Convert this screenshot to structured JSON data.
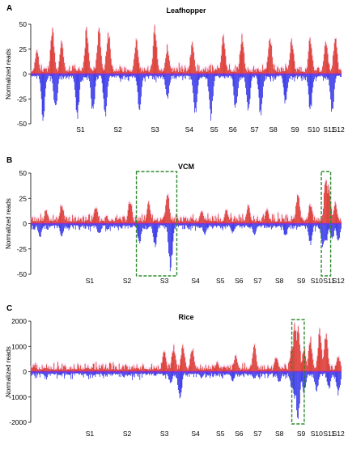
{
  "chart_data": [
    {
      "type": "bar",
      "panel": "A",
      "title": "Leafhopper",
      "ylabel": "Normalized reads",
      "ylim": [
        -50,
        50
      ],
      "yticks": [
        "50",
        "25",
        "0",
        "-25",
        "-50"
      ],
      "ytick_values": [
        50,
        25,
        0,
        -25,
        -50
      ],
      "x_segments": [
        "S1",
        "S2",
        "S3",
        "S4",
        "S5",
        "S6",
        "S7",
        "S8",
        "S9",
        "S10",
        "S11",
        "S12"
      ],
      "x_segment_positions": [
        0.16,
        0.28,
        0.4,
        0.51,
        0.59,
        0.65,
        0.72,
        0.78,
        0.85,
        0.91,
        0.96,
        0.99
      ],
      "series": [],
      "highlights": [],
      "peaks_positive": [
        [
          0.02,
          25
        ],
        [
          0.07,
          47
        ],
        [
          0.1,
          34
        ],
        [
          0.18,
          48
        ],
        [
          0.22,
          50
        ],
        [
          0.25,
          48
        ],
        [
          0.34,
          36
        ],
        [
          0.4,
          50
        ],
        [
          0.44,
          30
        ],
        [
          0.52,
          33
        ],
        [
          0.62,
          40
        ],
        [
          0.68,
          42
        ],
        [
          0.77,
          44
        ],
        [
          0.84,
          38
        ],
        [
          0.9,
          40
        ],
        [
          0.95,
          38
        ],
        [
          0.98,
          40
        ]
      ],
      "peaks_negative": [
        [
          0.04,
          -48
        ],
        [
          0.08,
          -38
        ],
        [
          0.15,
          -48
        ],
        [
          0.2,
          -42
        ],
        [
          0.24,
          -47
        ],
        [
          0.35,
          -38
        ],
        [
          0.44,
          -26
        ],
        [
          0.53,
          -45
        ],
        [
          0.58,
          -48
        ],
        [
          0.66,
          -40
        ],
        [
          0.7,
          -42
        ],
        [
          0.74,
          -47
        ],
        [
          0.82,
          -32
        ],
        [
          0.9,
          -40
        ],
        [
          0.97,
          -42
        ]
      ],
      "colors": {
        "positive": "#d92b1e",
        "negative": "#2323e6",
        "highlight": "#2e8b2e",
        "glow": "#f3c6ea"
      }
    },
    {
      "type": "bar",
      "panel": "B",
      "title": "VCM",
      "ylabel": "Normalized reads",
      "ylim": [
        -50,
        50
      ],
      "yticks": [
        "50",
        "25",
        "0",
        "-25",
        "-50"
      ],
      "ytick_values": [
        50,
        25,
        0,
        -25,
        -50
      ],
      "x_segments": [
        "S1",
        "S2",
        "S3",
        "S4",
        "S5",
        "S6",
        "S7",
        "S8",
        "S9",
        "S10",
        "S11",
        "S12"
      ],
      "x_segment_positions": [
        0.19,
        0.31,
        0.43,
        0.53,
        0.61,
        0.67,
        0.73,
        0.8,
        0.87,
        0.92,
        0.96,
        0.99
      ],
      "series": [],
      "highlights": [
        [
          0.34,
          0.47
        ],
        [
          0.935,
          0.965
        ]
      ],
      "peaks_positive": [
        [
          0.05,
          15
        ],
        [
          0.1,
          22
        ],
        [
          0.21,
          20
        ],
        [
          0.32,
          26
        ],
        [
          0.38,
          22
        ],
        [
          0.44,
          34
        ],
        [
          0.55,
          14
        ],
        [
          0.63,
          15
        ],
        [
          0.7,
          20
        ],
        [
          0.76,
          15
        ],
        [
          0.86,
          32
        ],
        [
          0.9,
          22
        ],
        [
          0.95,
          50
        ],
        [
          0.96,
          42
        ],
        [
          0.98,
          22
        ]
      ],
      "peaks_negative": [
        [
          0.03,
          -14
        ],
        [
          0.1,
          -14
        ],
        [
          0.22,
          -12
        ],
        [
          0.35,
          -22
        ],
        [
          0.4,
          -25
        ],
        [
          0.45,
          -50
        ],
        [
          0.56,
          -12
        ],
        [
          0.65,
          -10
        ],
        [
          0.72,
          -12
        ],
        [
          0.82,
          -15
        ],
        [
          0.9,
          -22
        ],
        [
          0.94,
          -25
        ],
        [
          0.95,
          -22
        ],
        [
          0.97,
          -18
        ],
        [
          0.99,
          -18
        ]
      ],
      "colors": {
        "positive": "#d92b1e",
        "negative": "#2323e6",
        "highlight": "#2e8b2e",
        "glow": "#f3c6ea"
      }
    },
    {
      "type": "bar",
      "panel": "C",
      "title": "Rice",
      "ylabel": "Normalized reads",
      "ylim": [
        -2000,
        2000
      ],
      "yticks": [
        "2000",
        "1000",
        "0",
        "-1000",
        "-2000"
      ],
      "ytick_values": [
        2000,
        1000,
        0,
        -1000,
        -2000
      ],
      "x_segments": [
        "S1",
        "S2",
        "S3",
        "S4",
        "S5",
        "S6",
        "S7",
        "S8",
        "S9",
        "S10",
        "S11",
        "S12"
      ],
      "x_segment_positions": [
        0.19,
        0.31,
        0.43,
        0.53,
        0.61,
        0.67,
        0.73,
        0.8,
        0.87,
        0.92,
        0.96,
        0.99
      ],
      "series": [],
      "highlights": [
        [
          0.84,
          0.88
        ]
      ],
      "peaks_positive": [
        [
          0.05,
          150
        ],
        [
          0.2,
          180
        ],
        [
          0.3,
          150
        ],
        [
          0.43,
          900
        ],
        [
          0.46,
          1100
        ],
        [
          0.49,
          1200
        ],
        [
          0.52,
          1000
        ],
        [
          0.6,
          400
        ],
        [
          0.66,
          700
        ],
        [
          0.72,
          1100
        ],
        [
          0.79,
          700
        ],
        [
          0.84,
          1000
        ],
        [
          0.85,
          1950
        ],
        [
          0.86,
          2000
        ],
        [
          0.88,
          1000
        ],
        [
          0.9,
          1400
        ],
        [
          0.93,
          1700
        ],
        [
          0.95,
          1600
        ],
        [
          0.99,
          700
        ]
      ],
      "peaks_negative": [
        [
          0.05,
          -200
        ],
        [
          0.2,
          -180
        ],
        [
          0.3,
          -220
        ],
        [
          0.45,
          -500
        ],
        [
          0.48,
          -1250
        ],
        [
          0.55,
          -300
        ],
        [
          0.65,
          -400
        ],
        [
          0.72,
          -300
        ],
        [
          0.8,
          -450
        ],
        [
          0.84,
          -700
        ],
        [
          0.85,
          -1200
        ],
        [
          0.86,
          -2000
        ],
        [
          0.88,
          -900
        ],
        [
          0.92,
          -800
        ],
        [
          0.96,
          -700
        ],
        [
          0.99,
          -1000
        ]
      ],
      "colors": {
        "positive": "#d92b1e",
        "negative": "#2323e6",
        "highlight": "#2e8b2e",
        "glow": "#f3c6ea"
      }
    }
  ]
}
